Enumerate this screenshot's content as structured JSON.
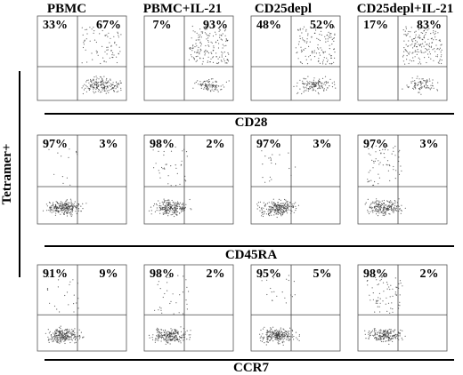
{
  "columns": [
    "PBMC",
    "PBMC+IL-21",
    "CD25depl",
    "CD25depl+IL-21"
  ],
  "side_label": "Tetramer+",
  "rows": [
    {
      "marker": "CD28",
      "quadrants": [
        [
          "33%",
          "67%"
        ],
        [
          "7%",
          "93%"
        ],
        [
          "48%",
          "52%"
        ],
        [
          "17%",
          "83%"
        ]
      ]
    },
    {
      "marker": "CD45RA",
      "quadrants": [
        [
          "97%",
          "3%"
        ],
        [
          "98%",
          "2%"
        ],
        [
          "97%",
          "3%"
        ],
        [
          "97%",
          "3%"
        ]
      ]
    },
    {
      "marker": "CCR7",
      "quadrants": [
        [
          "91%",
          "9%"
        ],
        [
          "98%",
          "2%"
        ],
        [
          "95%",
          "5%"
        ],
        [
          "98%",
          "2%"
        ]
      ]
    }
  ]
}
